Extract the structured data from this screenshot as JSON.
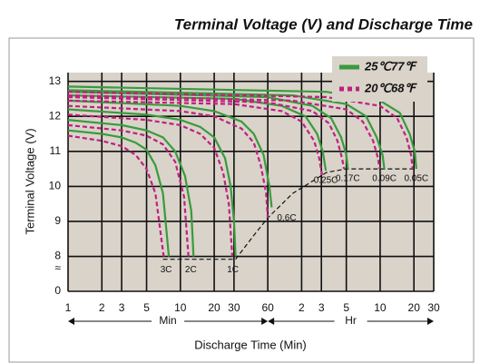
{
  "chart_data": {
    "type": "line",
    "title": "Terminal Voltage (V) and Discharge Time",
    "x_label": "Discharge Time (Min)",
    "y_label": "Terminal Voltage (V)",
    "xscale": "log",
    "xlim": [
      1,
      1800
    ],
    "xticks": [
      1,
      2,
      3,
      5,
      10,
      20,
      30,
      60,
      {
        "value": 120,
        "label": "2"
      },
      {
        "value": 180,
        "label": "3"
      },
      {
        "value": 300,
        "label": "5"
      },
      {
        "value": 600,
        "label": "10"
      },
      {
        "value": 1200,
        "label": "20"
      },
      {
        "value": 1800,
        "label": "30"
      }
    ],
    "x_units": [
      {
        "label": "Min",
        "range": [
          1,
          60
        ]
      },
      {
        "label": "Hr",
        "range": [
          60,
          1800
        ]
      }
    ],
    "ylim": [
      0,
      13.25
    ],
    "yticks": [
      0,
      8,
      9,
      10,
      11,
      12,
      13
    ],
    "ybreak": {
      "label": "≈",
      "range": [
        0,
        7.6
      ]
    },
    "grid": true,
    "legend": "top-right",
    "rates": [
      "3C",
      "2C",
      "1C",
      "0.6C",
      "0.25C",
      "0.17C",
      "0.09C",
      "0.05C"
    ],
    "series": [
      {
        "name": "25℃77℉",
        "color": "#3a9a3e",
        "dashed": false,
        "curves": [
          {
            "x": [
              1,
              2,
              3,
              4,
              5,
              6,
              7,
              7.9
            ],
            "values": [
              11.6,
              11.5,
              11.4,
              11.25,
              11.05,
              10.6,
              9.8,
              8.0
            ]
          },
          {
            "x": [
              1,
              3,
              5,
              7,
              9,
              11,
              12.5,
              13.1
            ],
            "values": [
              11.9,
              11.75,
              11.6,
              11.4,
              11.0,
              10.3,
              9.3,
              8.0
            ]
          },
          {
            "x": [
              1,
              5,
              10,
              15,
              20,
              25,
              28,
              30,
              31
            ],
            "values": [
              12.2,
              12.05,
              11.9,
              11.7,
              11.4,
              10.8,
              10.0,
              9.0,
              8.0
            ]
          },
          {
            "x": [
              1,
              10,
              20,
              35,
              45,
              55,
              62,
              65
            ],
            "values": [
              12.45,
              12.3,
              12.15,
              11.85,
              11.5,
              10.9,
              10.0,
              9.4
            ]
          },
          {
            "x": [
              1,
              30,
              80,
              130,
              165,
              185,
              197
            ],
            "values": [
              12.6,
              12.5,
              12.3,
              12.0,
              11.5,
              11.0,
              10.45
            ]
          },
          {
            "x": [
              1,
              60,
              150,
              220,
              270,
              300,
              309
            ],
            "values": [
              12.7,
              12.55,
              12.3,
              11.95,
              11.4,
              10.9,
              10.5
            ]
          },
          {
            "x": [
              1,
              100,
              300,
              450,
              560,
              630,
              655
            ],
            "values": [
              12.75,
              12.6,
              12.35,
              12.0,
              11.4,
              10.9,
              10.5
            ]
          },
          {
            "x": [
              1,
              200,
              600,
              900,
              1100,
              1220,
              1260
            ],
            "values": [
              12.85,
              12.7,
              12.45,
              12.1,
              11.5,
              11.0,
              10.5
            ]
          }
        ]
      },
      {
        "name": "20℃68℉",
        "color": "#c0207f",
        "dashed": true,
        "curves": [
          {
            "x": [
              1,
              2,
              3,
              4,
              5,
              6,
              7.1
            ],
            "values": [
              11.45,
              11.3,
              11.15,
              10.9,
              10.5,
              9.8,
              8.0
            ]
          },
          {
            "x": [
              1,
              3,
              5,
              7,
              9,
              10.8,
              11.8
            ],
            "values": [
              11.75,
              11.6,
              11.45,
              11.2,
              10.7,
              9.7,
              8.0
            ]
          },
          {
            "x": [
              1,
              5,
              10,
              15,
              20,
              24,
              27,
              29
            ],
            "values": [
              12.05,
              11.9,
              11.75,
              11.5,
              11.1,
              10.4,
              9.5,
              8.0
            ]
          },
          {
            "x": [
              1,
              10,
              20,
              35,
              45,
              52,
              58,
              60
            ],
            "values": [
              12.3,
              12.15,
              12.0,
              11.65,
              11.25,
              10.6,
              9.8,
              9.1
            ]
          },
          {
            "x": [
              1,
              30,
              80,
              120,
              155,
              172,
              183
            ],
            "values": [
              12.45,
              12.35,
              12.15,
              11.85,
              11.3,
              10.8,
              10.3
            ]
          },
          {
            "x": [
              1,
              60,
              150,
              210,
              250,
              275,
              286
            ],
            "values": [
              12.55,
              12.4,
              12.15,
              11.8,
              11.3,
              10.8,
              10.5
            ]
          },
          {
            "x": [
              1,
              100,
              300,
              420,
              520,
              575,
              595
            ],
            "values": [
              12.6,
              12.45,
              12.2,
              11.85,
              11.3,
              10.8,
              10.5
            ]
          },
          {
            "x": [
              1,
              200,
              600,
              850,
              1030,
              1130,
              1170
            ],
            "values": [
              12.7,
              12.55,
              12.3,
              11.95,
              11.4,
              10.9,
              10.5
            ]
          }
        ]
      }
    ],
    "end_line": {
      "color": "#111111",
      "x": [
        7,
        31,
        45,
        60,
        100,
        200,
        300,
        1260
      ],
      "values": [
        7.92,
        7.92,
        8.6,
        9.1,
        9.8,
        10.4,
        10.5,
        10.5
      ]
    }
  }
}
